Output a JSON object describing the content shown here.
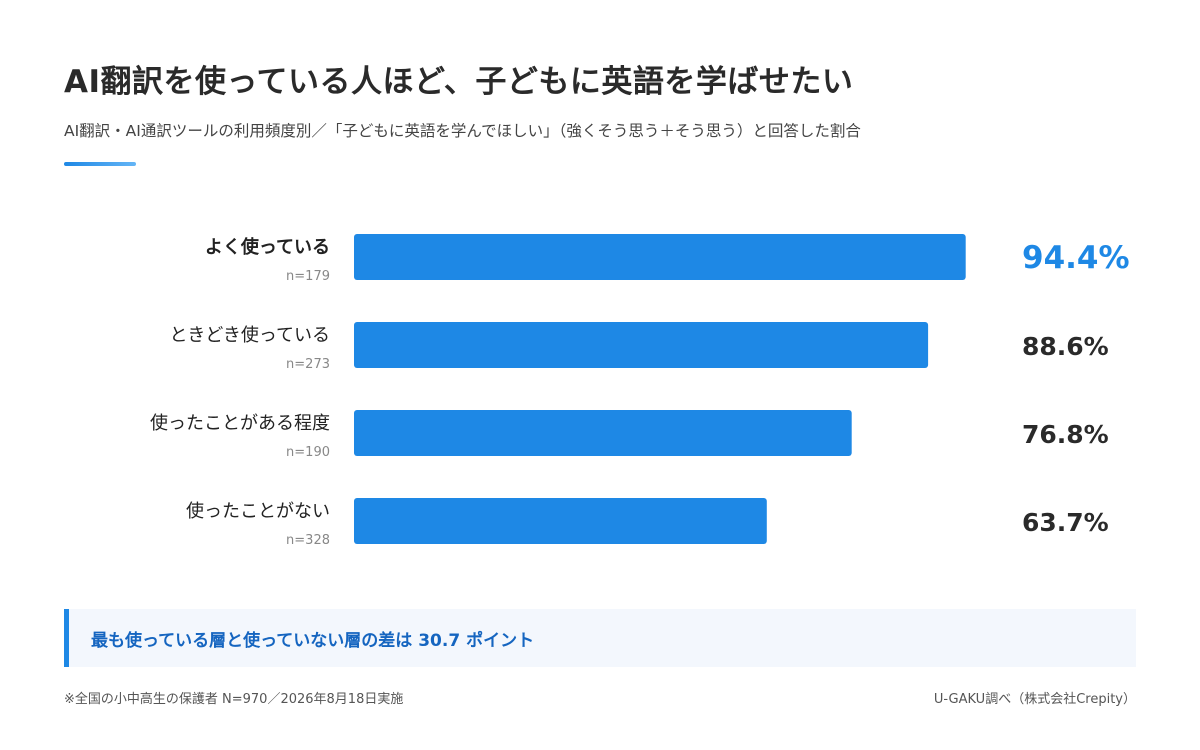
{
  "header": {
    "title": "AI翻訳を使っている人ほど、子どもに英語を学ばせたい",
    "subtitle": "AI翻訳・AI通訳ツールの利用頻度別／「子どもに英語を学んでほしい」（強くそう思う＋そう思う）と回答した割合"
  },
  "chart_data": {
    "type": "bar",
    "orientation": "horizontal",
    "categories": [
      "よく使っている",
      "ときどき使っている",
      "使ったことがある程度",
      "使ったことがない"
    ],
    "sample_sizes": [
      "n=179",
      "n=273",
      "n=190",
      "n=328"
    ],
    "values": [
      94.4,
      88.6,
      76.8,
      63.7
    ],
    "value_labels": [
      "94.4%",
      "88.6%",
      "76.8%",
      "63.7%"
    ],
    "xlim": [
      0,
      100
    ],
    "grid": false,
    "colors": {
      "bar": "#1e88e5",
      "highlight_value": "#1e88e5",
      "value": "#2a2a2a",
      "category": "#222222",
      "sample": "#888888"
    },
    "highlight_index": 0
  },
  "callout": {
    "text": "最も使っている層と使っていない層の差は 30.7 ポイント"
  },
  "footer": {
    "note": "※全国の小中高生の保護者 N=970／2026年8月18日実施",
    "source": "U-GAKU調べ（株式会社Crepity）"
  }
}
